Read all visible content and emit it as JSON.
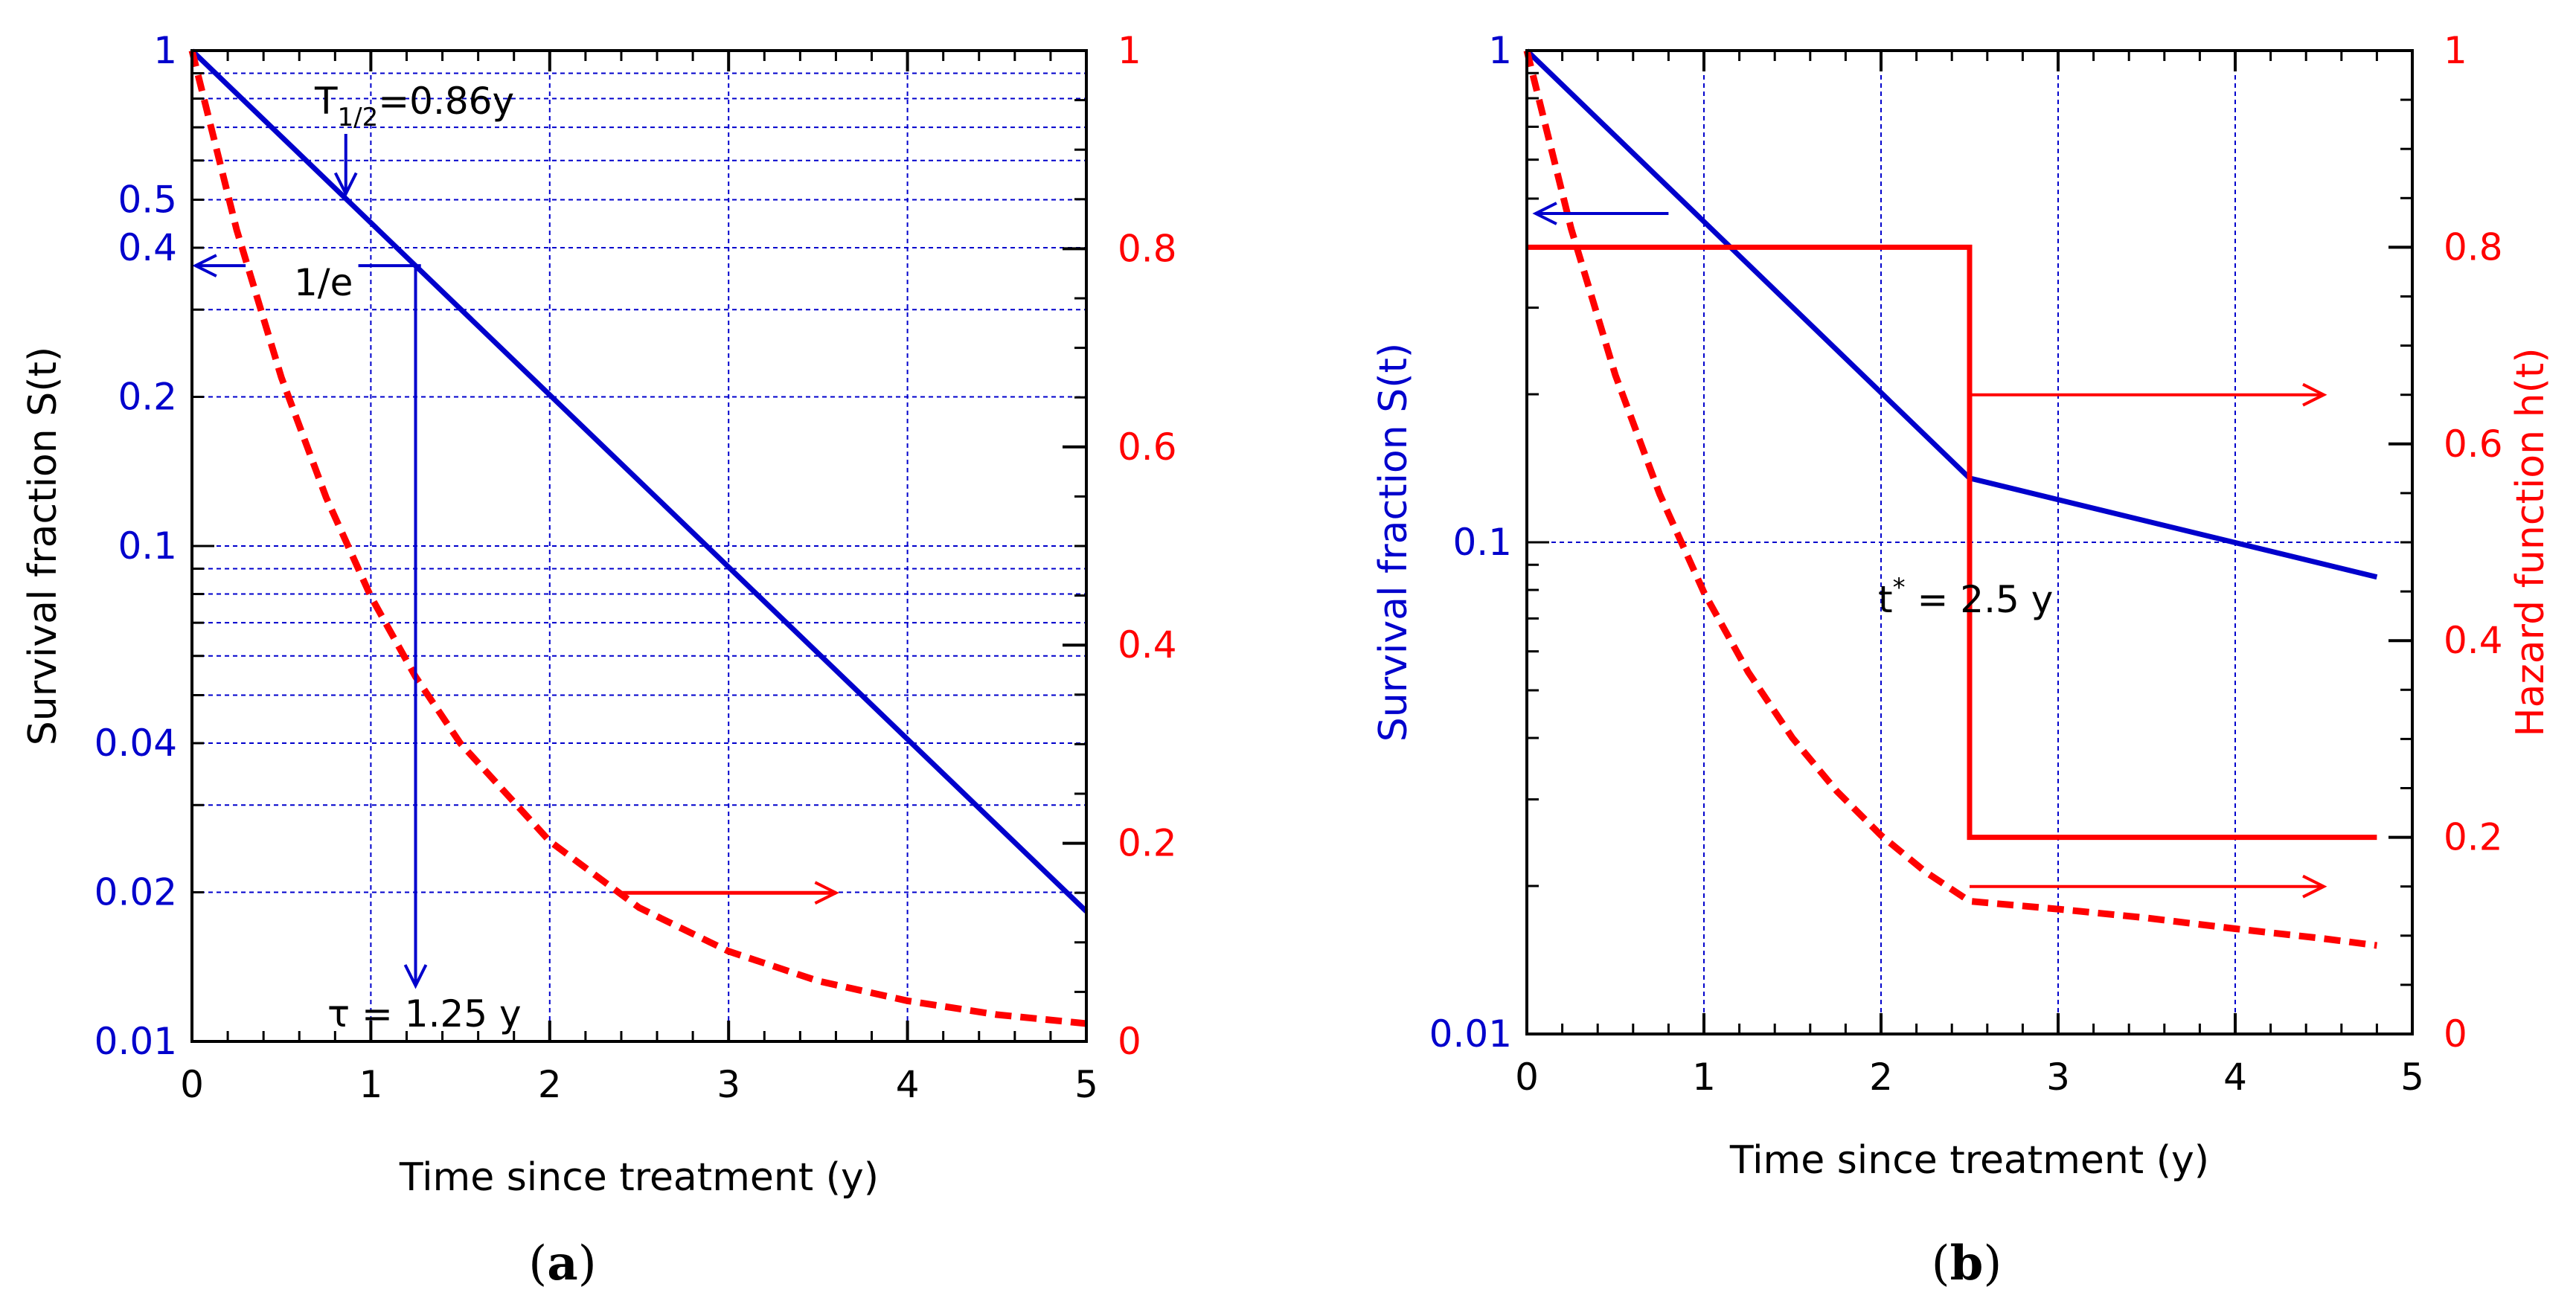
{
  "colors": {
    "blue": "#0000cc",
    "red": "#ff0000",
    "black": "#000000",
    "grid": "#0000cc"
  },
  "chart_data": [
    {
      "type": "line",
      "panel_label": "(a)",
      "panel_letter": "a",
      "xlabel": "Time since treatment (y)",
      "ylabel_left": "Survival fraction S(t)",
      "ylabel_right": "",
      "xlim": [
        0,
        5
      ],
      "ylim_left": [
        0.01,
        1
      ],
      "yscale_left": "log",
      "ylim_right": [
        0,
        1
      ],
      "x_ticks": [
        "0",
        "1",
        "2",
        "3",
        "4",
        "5"
      ],
      "y_left_ticks": [
        {
          "value": 1,
          "label": "1"
        },
        {
          "value": 0.5,
          "label": "0.5"
        },
        {
          "value": 0.4,
          "label": "0.4"
        },
        {
          "value": 0.2,
          "label": "0.2"
        },
        {
          "value": 0.1,
          "label": "0.1"
        },
        {
          "value": 0.04,
          "label": "0.04"
        },
        {
          "value": 0.02,
          "label": "0.02"
        },
        {
          "value": 0.01,
          "label": "0.01"
        }
      ],
      "y_right_ticks": [
        "0",
        "0.2",
        "0.4",
        "0.6",
        "0.8",
        "1"
      ],
      "series": [
        {
          "name": "S(t)",
          "axis": "left",
          "style": "solid",
          "color": "blue",
          "x": [
            0,
            5
          ],
          "y": [
            1,
            0.0183
          ]
        },
        {
          "name": "h(t)",
          "axis": "right",
          "style": "dashed",
          "color": "red",
          "x": [
            0,
            0.25,
            0.5,
            0.75,
            1,
            1.25,
            1.5,
            2,
            2.5,
            3,
            3.5,
            4,
            4.5,
            5
          ],
          "y": [
            1,
            0.819,
            0.67,
            0.549,
            0.449,
            0.368,
            0.301,
            0.202,
            0.135,
            0.091,
            0.061,
            0.041,
            0.027,
            0.018
          ]
        }
      ],
      "annotations": {
        "half_life": {
          "prefix": "T",
          "sub": "1/2",
          "suffix": "=0.86y",
          "x": 0.86
        },
        "one_over_e": {
          "text": "1/e",
          "value": 0.368
        },
        "tau": {
          "text": "τ = 1.25 y",
          "x": 1.25
        },
        "right_arrow": {
          "x_from": 2.4,
          "x_to": 3.6,
          "h": 0.15
        }
      }
    },
    {
      "type": "line",
      "panel_label": "(b)",
      "panel_letter": "b",
      "xlabel": "Time since treatment (y)",
      "ylabel_left": "Survival fraction S(t)",
      "ylabel_right": "Hazard function h(t)",
      "xlim": [
        0,
        5
      ],
      "ylim_left": [
        0.01,
        1
      ],
      "yscale_left": "log",
      "ylim_right": [
        0,
        1
      ],
      "x_ticks": [
        "0",
        "1",
        "2",
        "3",
        "4",
        "5"
      ],
      "y_left_ticks": [
        {
          "value": 1,
          "label": "1"
        },
        {
          "value": 0.1,
          "label": "0.1"
        },
        {
          "value": 0.01,
          "label": "0.01"
        }
      ],
      "y_right_ticks": [
        "0",
        "0.2",
        "0.4",
        "0.6",
        "0.8",
        "1"
      ],
      "series": [
        {
          "name": "S(t)",
          "axis": "left",
          "style": "solid",
          "color": "blue",
          "x": [
            0,
            2.5,
            4.8
          ],
          "y": [
            1,
            0.135,
            0.085
          ]
        },
        {
          "name": "h(t) step",
          "axis": "right",
          "style": "solid",
          "color": "red",
          "x": [
            0,
            2.5,
            2.5,
            4.8
          ],
          "y": [
            0.8,
            0.8,
            0.2,
            0.2
          ]
        },
        {
          "name": "h(t) curve",
          "axis": "right",
          "style": "dashed",
          "color": "red",
          "x": [
            0,
            0.25,
            0.5,
            0.75,
            1,
            1.25,
            1.5,
            1.75,
            2,
            2.25,
            2.5,
            3,
            3.5,
            4,
            4.5,
            4.8
          ],
          "y": [
            1,
            0.819,
            0.67,
            0.549,
            0.449,
            0.368,
            0.301,
            0.247,
            0.202,
            0.165,
            0.135,
            0.127,
            0.118,
            0.107,
            0.097,
            0.09
          ]
        }
      ],
      "annotations": {
        "t_star": {
          "prefix": "t",
          "sup": "*",
          "suffix": " = 2.5 y",
          "x": 2.5
        },
        "left_arrow": {
          "x_from": 0.8,
          "x_to": 0.05,
          "value": 0.5
        },
        "right_arrow_upper": {
          "x_from": 2.5,
          "x_to": 4.5,
          "h": 0.65
        },
        "right_arrow_lower": {
          "x_from": 2.5,
          "x_to": 4.5,
          "h": 0.15
        }
      }
    }
  ]
}
